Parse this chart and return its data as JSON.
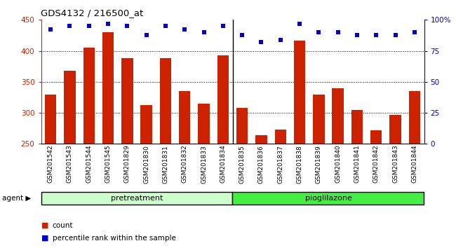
{
  "title": "GDS4132 / 216500_at",
  "samples": [
    "GSM201542",
    "GSM201543",
    "GSM201544",
    "GSM201545",
    "GSM201829",
    "GSM201830",
    "GSM201831",
    "GSM201832",
    "GSM201833",
    "GSM201834",
    "GSM201835",
    "GSM201836",
    "GSM201837",
    "GSM201838",
    "GSM201839",
    "GSM201840",
    "GSM201841",
    "GSM201842",
    "GSM201843",
    "GSM201844"
  ],
  "counts": [
    330,
    368,
    405,
    430,
    388,
    312,
    388,
    335,
    315,
    393,
    308,
    264,
    273,
    416,
    330,
    340,
    305,
    272,
    297,
    335
  ],
  "percentiles": [
    92,
    95,
    95,
    97,
    95,
    88,
    95,
    92,
    90,
    95,
    88,
    82,
    84,
    97,
    90,
    90,
    88,
    88,
    88,
    90
  ],
  "group_labels": [
    "pretreatment",
    "pioglilazone"
  ],
  "group_split": 10,
  "group_colors": [
    "#ccffcc",
    "#44ee44"
  ],
  "bar_color": "#cc2200",
  "dot_color": "#0000cc",
  "ylim_left": [
    250,
    450
  ],
  "ylim_right": [
    0,
    100
  ],
  "yticks_left": [
    250,
    300,
    350,
    400,
    450
  ],
  "yticks_right": [
    0,
    25,
    50,
    75,
    100
  ],
  "yticklabels_right": [
    "0",
    "25",
    "50",
    "75",
    "100%"
  ],
  "grid_values": [
    300,
    350,
    400
  ],
  "bg_color": "#ffffff",
  "agent_label": "agent"
}
